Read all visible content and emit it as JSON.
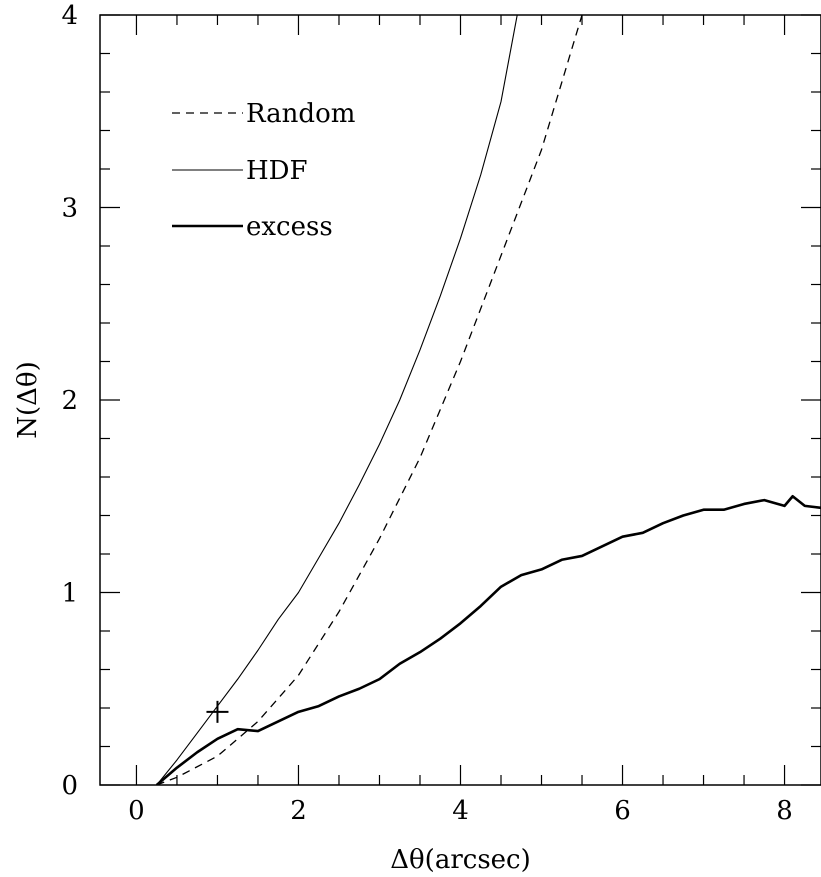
{
  "chart_data": {
    "type": "line",
    "xlabel": "Δθ(arcsec)",
    "ylabel": "N(Δθ)",
    "xlim": [
      -0.45,
      8.45
    ],
    "ylim": [
      0,
      4
    ],
    "x_ticks": [
      {
        "value": 0,
        "label": "0"
      },
      {
        "value": 2,
        "label": "2"
      },
      {
        "value": 4,
        "label": "4"
      },
      {
        "value": 6,
        "label": "6"
      },
      {
        "value": 8,
        "label": "8"
      }
    ],
    "y_ticks": [
      {
        "value": 0,
        "label": "0"
      },
      {
        "value": 1,
        "label": "1"
      },
      {
        "value": 2,
        "label": "2"
      },
      {
        "value": 3,
        "label": "3"
      },
      {
        "value": 4,
        "label": "4"
      }
    ],
    "x_minor_step": 0.5,
    "y_minor_step": 0.2,
    "legend_position": "top-left",
    "series": [
      {
        "name": "Random",
        "style": "dashed",
        "x": [
          0.25,
          0.5,
          1.0,
          1.5,
          2.0,
          2.5,
          3.0,
          3.5,
          4.0,
          4.5,
          5.0,
          5.25,
          5.5
        ],
        "y": [
          0.0,
          0.04,
          0.15,
          0.33,
          0.57,
          0.9,
          1.28,
          1.7,
          2.2,
          2.75,
          3.3,
          3.65,
          4.0
        ]
      },
      {
        "name": "HDF",
        "style": "thin",
        "x": [
          0.25,
          0.5,
          0.75,
          1.0,
          1.25,
          1.5,
          1.75,
          2.0,
          2.25,
          2.5,
          2.75,
          3.0,
          3.25,
          3.5,
          3.75,
          4.0,
          4.25,
          4.5,
          4.7
        ],
        "y": [
          0.0,
          0.13,
          0.27,
          0.41,
          0.55,
          0.7,
          0.86,
          1.0,
          1.18,
          1.36,
          1.56,
          1.77,
          2.0,
          2.26,
          2.54,
          2.84,
          3.17,
          3.55,
          4.0
        ]
      },
      {
        "name": "excess",
        "style": "thick",
        "x": [
          0.25,
          0.5,
          0.75,
          1.0,
          1.25,
          1.5,
          1.75,
          2.0,
          2.25,
          2.5,
          2.75,
          3.0,
          3.25,
          3.5,
          3.75,
          4.0,
          4.25,
          4.5,
          4.75,
          5.0,
          5.25,
          5.5,
          5.75,
          6.0,
          6.25,
          6.5,
          6.75,
          7.0,
          7.25,
          7.5,
          7.75,
          8.0,
          8.1,
          8.25,
          8.45
        ],
        "y": [
          0.0,
          0.09,
          0.17,
          0.24,
          0.29,
          0.28,
          0.33,
          0.38,
          0.41,
          0.46,
          0.5,
          0.55,
          0.63,
          0.69,
          0.76,
          0.84,
          0.93,
          1.03,
          1.09,
          1.12,
          1.17,
          1.19,
          1.24,
          1.29,
          1.31,
          1.36,
          1.4,
          1.43,
          1.43,
          1.46,
          1.48,
          1.45,
          1.5,
          1.45,
          1.44
        ]
      }
    ],
    "markers": [
      {
        "shape": "plus",
        "x": 1.0,
        "y": 0.38
      }
    ]
  },
  "colors": {
    "foreground": "#000000",
    "background": "#ffffff"
  }
}
